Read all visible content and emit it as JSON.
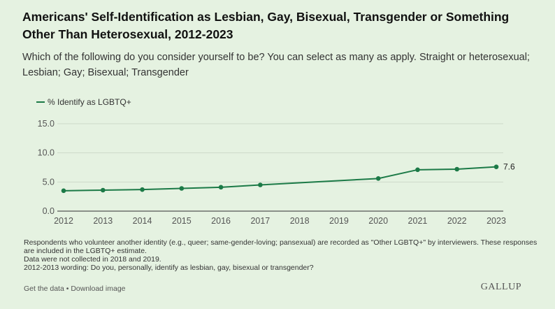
{
  "chart_data": {
    "type": "line",
    "title": "Americans' Self-Identification as Lesbian, Gay, Bisexual, Transgender or Something Other Than Heterosexual, 2012-2023",
    "subtitle": "Which of the following do you consider yourself to be? You can select as many as apply. Straight or heterosexual; Lesbian; Gay; Bisexual; Transgender",
    "x_ticks": [
      "2012",
      "2013",
      "2014",
      "2015",
      "2016",
      "2017",
      "2018",
      "2019",
      "2020",
      "2021",
      "2022",
      "2023"
    ],
    "y_ticks": [
      "0.0",
      "5.0",
      "10.0",
      "15.0"
    ],
    "ylim": [
      0,
      15
    ],
    "xlim": [
      2012,
      2023
    ],
    "grid": true,
    "legend_placement": "top-left",
    "series": [
      {
        "name": "% Identify as LGBTQ+",
        "color": "#1c7a47",
        "x": [
          2012,
          2013,
          2014,
          2015,
          2016,
          2017,
          2020,
          2021,
          2022,
          2023
        ],
        "values": [
          3.5,
          3.6,
          3.7,
          3.9,
          4.1,
          4.5,
          5.6,
          7.1,
          7.2,
          7.6
        ]
      }
    ],
    "end_label": "7.6"
  },
  "notes": [
    "Respondents who volunteer another identity (e.g., queer; same-gender-loving; pansexual) are recorded as \"Other LGBTQ+\" by interviewers. These responses are included in the LGBTQ+ estimate.",
    "Data were not collected in 2018 and 2019.",
    "2012-2013 wording: Do you, personally, identify as lesbian, gay, bisexual or transgender?"
  ],
  "footer": {
    "get_data": "Get the data",
    "separator": " • ",
    "download": "Download image",
    "logo": "GALLUP"
  }
}
